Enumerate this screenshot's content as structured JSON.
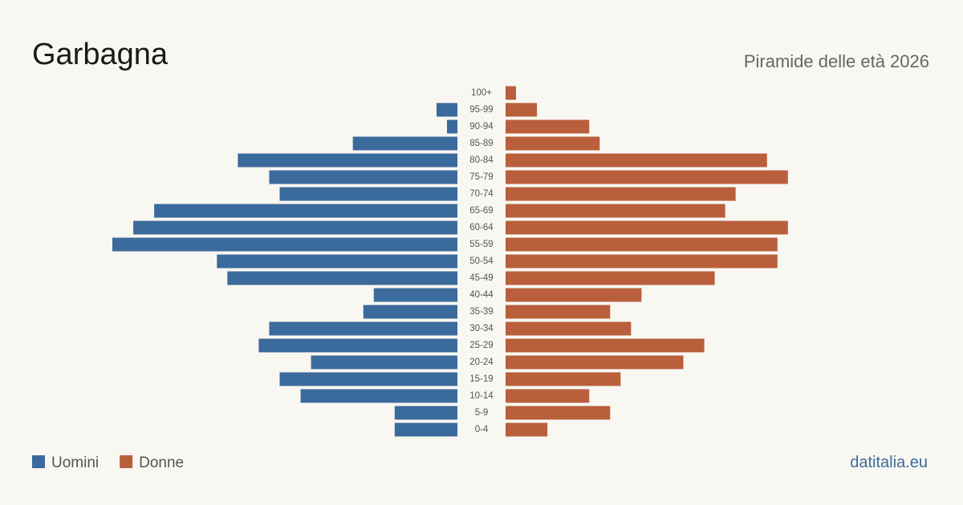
{
  "chart_data": {
    "type": "pyramid",
    "title": "Garbagna",
    "subtitle": "Piramide delle età 2026",
    "source": "datitalia.eu",
    "categories": [
      "100+",
      "95-99",
      "90-94",
      "85-89",
      "80-84",
      "75-79",
      "70-74",
      "65-69",
      "60-64",
      "55-59",
      "50-54",
      "45-49",
      "40-44",
      "35-39",
      "30-34",
      "25-29",
      "20-24",
      "15-19",
      "10-14",
      "5-9",
      "0-4"
    ],
    "series": [
      {
        "name": "Uomini",
        "color": "#3b6a9c",
        "values": [
          0,
          2,
          1,
          10,
          21,
          18,
          17,
          29,
          31,
          33,
          23,
          22,
          8,
          9,
          18,
          19,
          14,
          17,
          15,
          6,
          6
        ]
      },
      {
        "name": "Donne",
        "color": "#b95f3c",
        "values": [
          1,
          3,
          8,
          9,
          25,
          27,
          22,
          21,
          27,
          26,
          26,
          20,
          13,
          10,
          12,
          19,
          17,
          11,
          8,
          10,
          4
        ]
      }
    ]
  }
}
